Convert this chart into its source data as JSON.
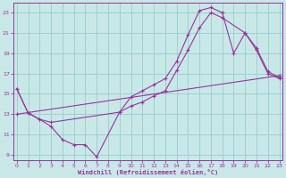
{
  "xlabel": "Windchill (Refroidissement éolien,°C)",
  "bg_color": "#c8e8e8",
  "grid_color": "#99cccc",
  "line_color": "#993399",
  "xlim_min": -0.3,
  "xlim_max": 23.3,
  "ylim_min": 8.5,
  "ylim_max": 24.0,
  "xticks": [
    0,
    1,
    2,
    3,
    4,
    5,
    6,
    7,
    8,
    9,
    10,
    11,
    12,
    13,
    14,
    15,
    16,
    17,
    18,
    19,
    20,
    21,
    22,
    23
  ],
  "yticks": [
    9,
    11,
    13,
    15,
    17,
    19,
    21,
    23
  ],
  "line1_x": [
    0,
    1,
    2,
    3,
    4,
    5,
    6,
    7,
    9,
    10,
    11,
    12,
    13,
    14,
    15,
    16,
    17,
    18,
    19,
    20,
    21,
    22,
    23
  ],
  "line1_y": [
    15.5,
    13.1,
    12.5,
    11.8,
    10.5,
    10.0,
    10.0,
    8.8,
    13.2,
    14.7,
    15.3,
    15.9,
    16.5,
    18.2,
    20.8,
    23.2,
    23.5,
    23.0,
    19.0,
    21.0,
    19.3,
    17.0,
    16.5
  ],
  "line2_x": [
    0,
    1,
    2,
    3,
    9,
    10,
    11,
    12,
    13,
    14,
    15,
    16,
    17,
    18,
    20,
    21,
    22,
    23
  ],
  "line2_y": [
    15.5,
    13.1,
    12.5,
    12.2,
    13.2,
    13.8,
    14.2,
    14.8,
    15.3,
    17.3,
    19.3,
    21.5,
    23.0,
    22.5,
    21.0,
    19.5,
    17.2,
    16.6
  ],
  "line3_x": [
    0,
    23
  ],
  "line3_y": [
    13.0,
    16.8
  ]
}
